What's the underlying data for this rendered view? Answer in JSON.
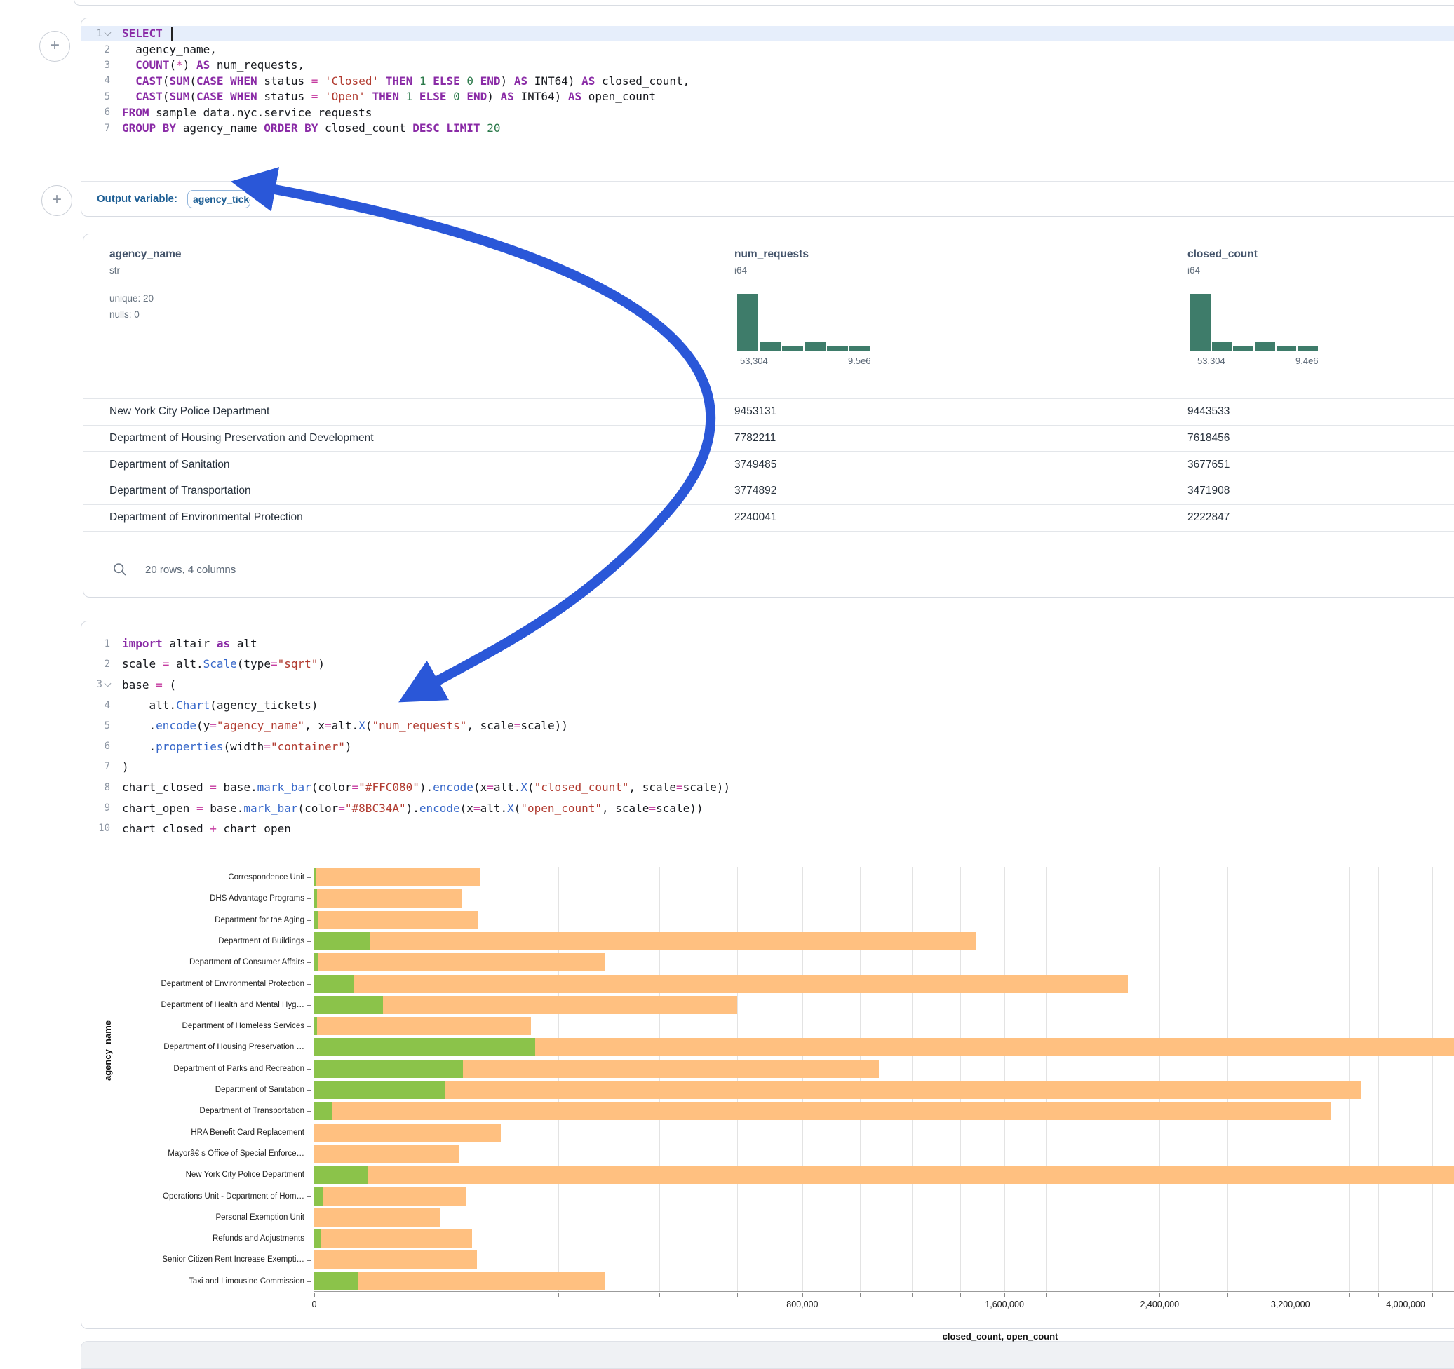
{
  "colors": {
    "closed_bar": "#FFC080",
    "open_bar": "#8BC34A",
    "histogram": "#3e7c6a",
    "annotation_arrow": "#2a57d8",
    "accent_blue": "#1e5f95"
  },
  "sql_cell": {
    "lines": [
      {
        "n": "1",
        "fold": true,
        "active": true,
        "cursor": true,
        "t": [
          [
            "k",
            "SELECT"
          ]
        ]
      },
      {
        "n": "2",
        "t": [
          [
            "d",
            "  agency_name,"
          ]
        ]
      },
      {
        "n": "3",
        "t": [
          [
            "d",
            "  "
          ],
          [
            "k",
            "COUNT"
          ],
          [
            "d",
            "("
          ],
          [
            "o",
            "*"
          ],
          [
            "d",
            ") "
          ],
          [
            "k",
            "AS"
          ],
          [
            "d",
            " num_requests,"
          ]
        ]
      },
      {
        "n": "4",
        "t": [
          [
            "d",
            "  "
          ],
          [
            "k",
            "CAST"
          ],
          [
            "d",
            "("
          ],
          [
            "k",
            "SUM"
          ],
          [
            "d",
            "("
          ],
          [
            "k",
            "CASE"
          ],
          [
            "d",
            " "
          ],
          [
            "k",
            "WHEN"
          ],
          [
            "d",
            " status "
          ],
          [
            "o",
            "="
          ],
          [
            "d",
            " "
          ],
          [
            "s",
            "'Closed'"
          ],
          [
            "d",
            " "
          ],
          [
            "k",
            "THEN"
          ],
          [
            "d",
            " "
          ],
          [
            "n",
            "1"
          ],
          [
            "d",
            " "
          ],
          [
            "k",
            "ELSE"
          ],
          [
            "d",
            " "
          ],
          [
            "n",
            "0"
          ],
          [
            "d",
            " "
          ],
          [
            "k",
            "END"
          ],
          [
            "d",
            ") "
          ],
          [
            "k",
            "AS"
          ],
          [
            "d",
            " INT64) "
          ],
          [
            "k",
            "AS"
          ],
          [
            "d",
            " closed_count,"
          ]
        ]
      },
      {
        "n": "5",
        "t": [
          [
            "d",
            "  "
          ],
          [
            "k",
            "CAST"
          ],
          [
            "d",
            "("
          ],
          [
            "k",
            "SUM"
          ],
          [
            "d",
            "("
          ],
          [
            "k",
            "CASE"
          ],
          [
            "d",
            " "
          ],
          [
            "k",
            "WHEN"
          ],
          [
            "d",
            " status "
          ],
          [
            "o",
            "="
          ],
          [
            "d",
            " "
          ],
          [
            "s",
            "'Open'"
          ],
          [
            "d",
            " "
          ],
          [
            "k",
            "THEN"
          ],
          [
            "d",
            " "
          ],
          [
            "n",
            "1"
          ],
          [
            "d",
            " "
          ],
          [
            "k",
            "ELSE"
          ],
          [
            "d",
            " "
          ],
          [
            "n",
            "0"
          ],
          [
            "d",
            " "
          ],
          [
            "k",
            "END"
          ],
          [
            "d",
            ") "
          ],
          [
            "k",
            "AS"
          ],
          [
            "d",
            " INT64) "
          ],
          [
            "k",
            "AS"
          ],
          [
            "d",
            " open_count"
          ]
        ]
      },
      {
        "n": "6",
        "t": [
          [
            "k",
            "FROM"
          ],
          [
            "d",
            " sample_data.nyc.service_requests"
          ]
        ]
      },
      {
        "n": "7",
        "t": [
          [
            "k",
            "GROUP BY"
          ],
          [
            "d",
            " agency_name "
          ],
          [
            "k",
            "ORDER BY"
          ],
          [
            "d",
            " closed_count "
          ],
          [
            "k",
            "DESC"
          ],
          [
            "d",
            " "
          ],
          [
            "k",
            "LIMIT"
          ],
          [
            "d",
            " "
          ],
          [
            "n",
            "20"
          ]
        ]
      }
    ],
    "output_label": "Output variable:",
    "output_variable": "agency_tickets"
  },
  "table": {
    "columns": [
      {
        "name": "agency_name",
        "type": "str",
        "meta": [
          "unique: 20",
          "nulls: 0"
        ]
      },
      {
        "name": "num_requests",
        "type": "i64",
        "hist": [
          1,
          0.16,
          0.09,
          0.16,
          0.09,
          0.09
        ],
        "min_label": "53,304",
        "max_label": "9.5e6"
      },
      {
        "name": "closed_count",
        "type": "i64",
        "hist": [
          1,
          0.17,
          0.09,
          0.17,
          0.09,
          0.09
        ],
        "min_label": "53,304",
        "max_label": "9.4e6"
      }
    ],
    "rows": [
      {
        "agency_name": "New York City Police Department",
        "num_requests": "9453131",
        "closed_count": "9443533"
      },
      {
        "agency_name": "Department of Housing Preservation and Development",
        "num_requests": "7782211",
        "closed_count": "7618456"
      },
      {
        "agency_name": "Department of Sanitation",
        "num_requests": "3749485",
        "closed_count": "3677651"
      },
      {
        "agency_name": "Department of Transportation",
        "num_requests": "3774892",
        "closed_count": "3471908"
      },
      {
        "agency_name": "Department of Environmental Protection",
        "num_requests": "2240041",
        "closed_count": "2222847"
      }
    ],
    "footer": "20 rows, 4 columns"
  },
  "python_cell": {
    "lines": [
      {
        "n": "1",
        "t": [
          [
            "k",
            "import"
          ],
          [
            "d",
            " altair "
          ],
          [
            "k",
            "as"
          ],
          [
            "d",
            " alt"
          ]
        ]
      },
      {
        "n": "2",
        "t": [
          [
            "d",
            "scale "
          ],
          [
            "o",
            "="
          ],
          [
            "d",
            " alt."
          ],
          [
            "f",
            "Scale"
          ],
          [
            "d",
            "(type"
          ],
          [
            "o",
            "="
          ],
          [
            "s",
            "\"sqrt\""
          ],
          [
            "d",
            ")"
          ]
        ]
      },
      {
        "n": "3",
        "fold": true,
        "t": [
          [
            "d",
            "base "
          ],
          [
            "o",
            "="
          ],
          [
            "d",
            " ("
          ]
        ]
      },
      {
        "n": "4",
        "t": [
          [
            "d",
            "    alt."
          ],
          [
            "f",
            "Chart"
          ],
          [
            "d",
            "(agency_tickets)"
          ]
        ]
      },
      {
        "n": "5",
        "t": [
          [
            "d",
            "    ."
          ],
          [
            "f",
            "encode"
          ],
          [
            "d",
            "(y"
          ],
          [
            "o",
            "="
          ],
          [
            "s",
            "\"agency_name\""
          ],
          [
            "d",
            ", x"
          ],
          [
            "o",
            "="
          ],
          [
            "d",
            "alt."
          ],
          [
            "f",
            "X"
          ],
          [
            "d",
            "("
          ],
          [
            "s",
            "\"num_requests\""
          ],
          [
            "d",
            ", scale"
          ],
          [
            "o",
            "="
          ],
          [
            "d",
            "scale))"
          ]
        ]
      },
      {
        "n": "6",
        "t": [
          [
            "d",
            "    ."
          ],
          [
            "f",
            "properties"
          ],
          [
            "d",
            "(width"
          ],
          [
            "o",
            "="
          ],
          [
            "s",
            "\"container\""
          ],
          [
            "d",
            ")"
          ]
        ]
      },
      {
        "n": "7",
        "t": [
          [
            "d",
            ")"
          ]
        ]
      },
      {
        "n": "8",
        "t": [
          [
            "d",
            "chart_closed "
          ],
          [
            "o",
            "="
          ],
          [
            "d",
            " base."
          ],
          [
            "f",
            "mark_bar"
          ],
          [
            "d",
            "(color"
          ],
          [
            "o",
            "="
          ],
          [
            "s",
            "\"#FFC080\""
          ],
          [
            "d",
            ")."
          ],
          [
            "f",
            "encode"
          ],
          [
            "d",
            "(x"
          ],
          [
            "o",
            "="
          ],
          [
            "d",
            "alt."
          ],
          [
            "f",
            "X"
          ],
          [
            "d",
            "("
          ],
          [
            "s",
            "\"closed_count\""
          ],
          [
            "d",
            ", scale"
          ],
          [
            "o",
            "="
          ],
          [
            "d",
            "scale))"
          ]
        ]
      },
      {
        "n": "9",
        "t": [
          [
            "d",
            "chart_open "
          ],
          [
            "o",
            "="
          ],
          [
            "d",
            " base."
          ],
          [
            "f",
            "mark_bar"
          ],
          [
            "d",
            "(color"
          ],
          [
            "o",
            "="
          ],
          [
            "s",
            "\"#8BC34A\""
          ],
          [
            "d",
            ")."
          ],
          [
            "f",
            "encode"
          ],
          [
            "d",
            "(x"
          ],
          [
            "o",
            "="
          ],
          [
            "d",
            "alt."
          ],
          [
            "f",
            "X"
          ],
          [
            "d",
            "("
          ],
          [
            "s",
            "\"open_count\""
          ],
          [
            "d",
            ", scale"
          ],
          [
            "o",
            "="
          ],
          [
            "d",
            "scale))"
          ]
        ]
      },
      {
        "n": "10",
        "t": [
          [
            "d",
            "chart_closed "
          ],
          [
            "o",
            "+"
          ],
          [
            "d",
            " chart_open"
          ]
        ]
      }
    ]
  },
  "chart_data": {
    "type": "bar",
    "orientation": "horizontal",
    "x_scale": "sqrt",
    "ylabel": "agency_name",
    "xlabel": "closed_count, open_count",
    "x_major_tick_step": 800000,
    "x_minor_tick_step": 200000,
    "x_tick_labels": [
      "0",
      "800,000",
      "1,600,000",
      "2,400,000",
      "3,200,000",
      "4,000,000"
    ],
    "categories": [
      "Correspondence Unit",
      "DHS Advantage Programs",
      "Department for the Aging",
      "Department of Buildings",
      "Department of Consumer Affairs",
      "Department of Environmental Protection",
      "Department of Health and Mental Hyg…",
      "Department of Homeless Services",
      "Department of Housing Preservation …",
      "Department of Parks and Recreation",
      "Department of Sanitation",
      "Department of Transportation",
      "HRA Benefit Card Replacement",
      "Mayorâ€ s Office of Special Enforce…",
      "New York City Police Department",
      "Operations Unit - Department of Hom…",
      "Personal Exemption Unit",
      "Refunds and Adjustments",
      "Senior Citizen Rent Increase Exempti…",
      "Taxi and Limousine Commission"
    ],
    "series": [
      {
        "name": "closed_count",
        "color": "#FFC080",
        "values": [
          92000,
          73000,
          90000,
          1470000,
          283000,
          2222847,
          600000,
          158000,
          7618456,
          1070000,
          3677651,
          3471908,
          117000,
          71000,
          9443533,
          78000,
          53304,
          84000,
          89000,
          283000
        ]
      },
      {
        "name": "open_count",
        "color": "#8BC34A",
        "values": [
          20,
          30,
          60,
          10300,
          40,
          5200,
          16000,
          30,
          164000,
          74000,
          58000,
          1100,
          0,
          0,
          9598,
          250,
          0,
          140,
          0,
          6600
        ]
      }
    ]
  }
}
